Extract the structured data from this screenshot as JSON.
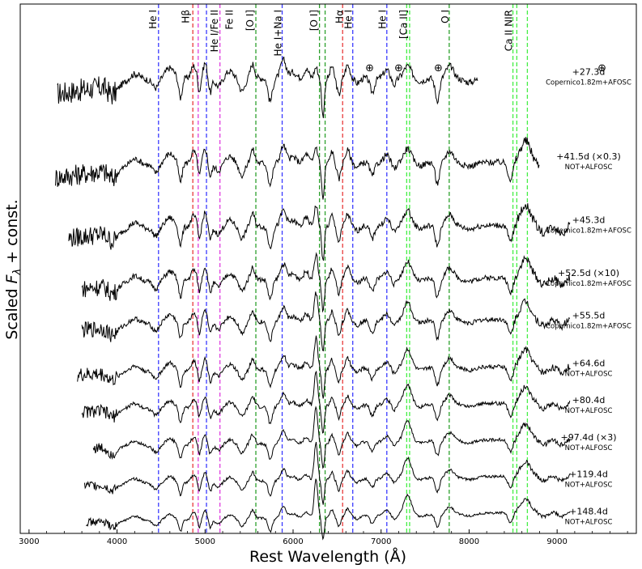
{
  "chart_data": {
    "type": "line",
    "title": "",
    "xlabel": "Rest Wavelength (Å)",
    "ylabel_prefix": "Scaled ",
    "ylabel_var": "F",
    "ylabel_sub": "λ",
    "ylabel_suffix": " + const.",
    "xlim": [
      2900,
      9900
    ],
    "xticks": [
      3000,
      4000,
      5000,
      6000,
      7000,
      8000,
      9000
    ],
    "xtick_labels": [
      "3000",
      "4000",
      "5000",
      "6000",
      "7000",
      "8000",
      "9000"
    ],
    "ylim": [
      0,
      100
    ],
    "y_ticks_shown": false,
    "colors": {
      "spectrum": "#000000",
      "He I": "#3a3aff",
      "H": "#e83a3a",
      "Fe II": "#e040e0",
      "O I": "#2ca02c",
      "Ca II": "#44ee44",
      "spine": "#000000"
    },
    "line_markers": [
      {
        "wavelength": 4471,
        "color_key": "He I"
      },
      {
        "wavelength": 4861,
        "color_key": "H"
      },
      {
        "wavelength": 4922,
        "color_key": "Fe II"
      },
      {
        "wavelength": 5016,
        "color_key": "He I"
      },
      {
        "wavelength": 5169,
        "color_key": "Fe II"
      },
      {
        "wavelength": 5577,
        "color_key": "O I"
      },
      {
        "wavelength": 5876,
        "color_key": "He I"
      },
      {
        "wavelength": 6300,
        "color_key": "O I"
      },
      {
        "wavelength": 6364,
        "color_key": "O I"
      },
      {
        "wavelength": 6563,
        "color_key": "H"
      },
      {
        "wavelength": 6678,
        "color_key": "He I"
      },
      {
        "wavelength": 7065,
        "color_key": "He I"
      },
      {
        "wavelength": 7291,
        "color_key": "Ca II"
      },
      {
        "wavelength": 7324,
        "color_key": "Ca II"
      },
      {
        "wavelength": 7774,
        "color_key": "O I"
      },
      {
        "wavelength": 8498,
        "color_key": "Ca II"
      },
      {
        "wavelength": 8542,
        "color_key": "Ca II"
      },
      {
        "wavelength": 8662,
        "color_key": "Ca II"
      }
    ],
    "line_labels": [
      {
        "text": "He I",
        "wavelength": 4400
      },
      {
        "text": "Hβ",
        "wavelength": 4770
      },
      {
        "text": "He I/Fe II",
        "wavelength": 5100
      },
      {
        "text": "Fe II",
        "wavelength": 5270
      },
      {
        "text": "[O I]",
        "wavelength": 5505
      },
      {
        "text": "He I+Na I",
        "wavelength": 5820
      },
      {
        "text": "[O I]",
        "wavelength": 6230
      },
      {
        "text": "Hα",
        "wavelength": 6520
      },
      {
        "text": "He I",
        "wavelength": 6620
      },
      {
        "text": "He I",
        "wavelength": 7005
      },
      {
        "text": "[Ca II]",
        "wavelength": 7245
      },
      {
        "text": "O I",
        "wavelength": 7720
      },
      {
        "text": "Ca II NIR",
        "wavelength": 8440
      }
    ],
    "telluric": {
      "symbol": "⊕",
      "wavelengths": [
        6870,
        7200,
        7650,
        9510
      ]
    },
    "series": [
      {
        "epoch": "+27.3d",
        "instrument": "Copernico1.82m+AFOSC",
        "range": [
          3320,
          8100
        ],
        "level": 86
      },
      {
        "epoch": "+41.5d (×0.3)",
        "instrument": "NOT+ALFOSC",
        "range": [
          3300,
          8800
        ],
        "level": 70
      },
      {
        "epoch": "+45.3d",
        "instrument": "Copernico1.82m+AFOSC",
        "range": [
          3450,
          9150
        ],
        "level": 58
      },
      {
        "epoch": "+52.5d (×10)",
        "instrument": "Copernico1.82m+AFOSC",
        "range": [
          3600,
          9150
        ],
        "level": 48
      },
      {
        "epoch": "+55.5d",
        "instrument": "Copernico1.82m+AFOSC",
        "range": [
          3600,
          9150
        ],
        "level": 40
      },
      {
        "epoch": "+64.6d",
        "instrument": "NOT+ALFOSC",
        "range": [
          3550,
          9150
        ],
        "level": 31
      },
      {
        "epoch": "+80.4d",
        "instrument": "NOT+ALFOSC",
        "range": [
          3600,
          9150
        ],
        "level": 24
      },
      {
        "epoch": "+97.4d (×3)",
        "instrument": "NOT+ALFOSC",
        "range": [
          3730,
          9150
        ],
        "level": 17
      },
      {
        "epoch": "+119.4d",
        "instrument": "NOT+ALFOSC",
        "range": [
          3630,
          9150
        ],
        "level": 10
      },
      {
        "epoch": "+148.4d",
        "instrument": "NOT+ALFOSC",
        "range": [
          3650,
          9150
        ],
        "level": 3
      }
    ]
  }
}
